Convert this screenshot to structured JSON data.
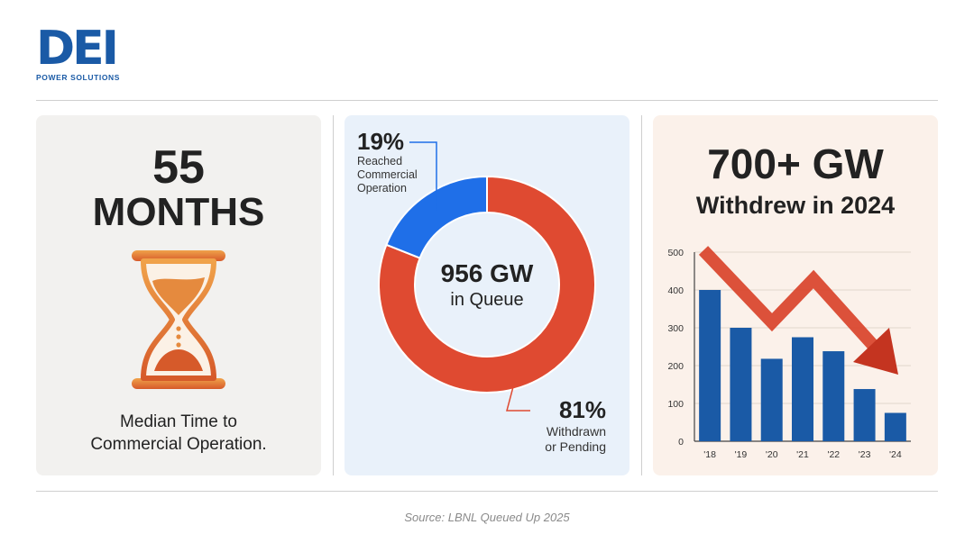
{
  "brand": {
    "mark": "DEI",
    "subtitle": "POWER SOLUTIONS",
    "color": "#1a5aa6"
  },
  "panel_time": {
    "value": "55",
    "unit": "MONTHS",
    "icon": "hourglass-icon",
    "caption_line1": "Median Time to",
    "caption_line2": "Commercial Operation.",
    "accent": "#e07a2e"
  },
  "panel_queue": {
    "center_value": "956 GW",
    "center_label": "in Queue",
    "reached_pct": "19%",
    "reached_label_1": "Reached",
    "reached_label_2": "Commercial",
    "reached_label_3": "Operation",
    "withdrawn_pct": "81%",
    "withdrawn_label_1": "Withdrawn",
    "withdrawn_label_2": "or Pending"
  },
  "panel_withdrew": {
    "headline": "700+ GW",
    "subhead": "Withdrew in 2024",
    "trend_arrow": "down-trend-arrow-icon"
  },
  "chart_data": [
    {
      "type": "pie",
      "categories": [
        "Reached Commercial Operation",
        "Withdrawn or Pending"
      ],
      "values": [
        19,
        81
      ],
      "colors": [
        "#1f6fe8",
        "#df4a31"
      ]
    },
    {
      "type": "bar",
      "categories": [
        "'18",
        "'19",
        "'20",
        "'21",
        "'22",
        "'23",
        "'24"
      ],
      "values": [
        400,
        300,
        218,
        275,
        238,
        138,
        75
      ],
      "ylim": [
        0,
        500
      ],
      "yticks": [
        0,
        100,
        200,
        300,
        400,
        500
      ],
      "grid": true,
      "color": "#1a5aa6"
    }
  ],
  "footer": {
    "source": "Source: LBNL Queued Up 2025"
  }
}
